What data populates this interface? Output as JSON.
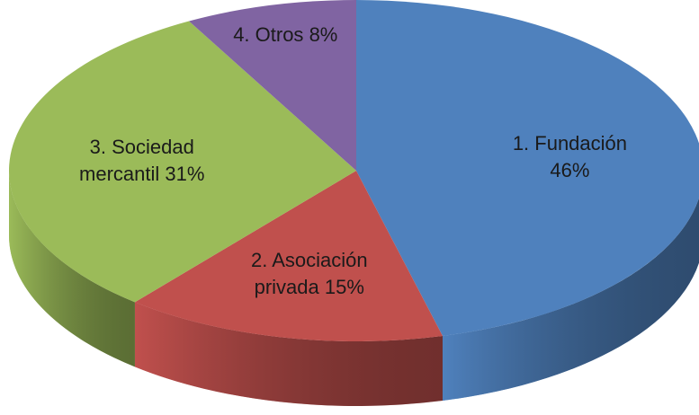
{
  "chart_data": {
    "type": "pie",
    "categories": [
      "1. Fundación",
      "2. Asociación privada",
      "3. Sociedad mercantil",
      "4. Otros"
    ],
    "values": [
      46,
      15,
      31,
      8
    ],
    "value_labels": [
      "46%",
      "15%",
      "31%",
      "8%"
    ],
    "colors": [
      "#4f81bd",
      "#c0504d",
      "#9bbb59",
      "#8064a2"
    ]
  }
}
